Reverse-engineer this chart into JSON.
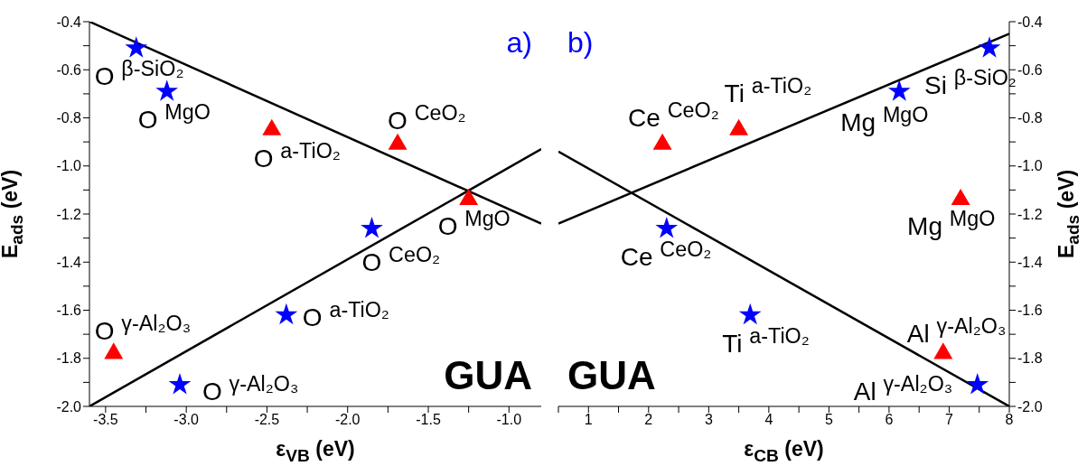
{
  "chart_data": [
    {
      "type": "scatter",
      "xlabel": "ε$_{VB}$ (eV)",
      "ylabel": "E$_{ads}$ (eV)",
      "xlim": [
        -3.6,
        -0.8
      ],
      "xticks": [
        {
          "value": -3.5,
          "label": "-3.5"
        },
        {
          "value": -3.25,
          "label": null
        },
        {
          "value": -3.0,
          "label": "-3.0"
        },
        {
          "value": -2.75,
          "label": null
        },
        {
          "value": -2.5,
          "label": "-2.5"
        },
        {
          "value": -2.25,
          "label": null
        },
        {
          "value": -2.0,
          "label": "-2.0"
        },
        {
          "value": -1.75,
          "label": null
        },
        {
          "value": -1.5,
          "label": "-1.5"
        },
        {
          "value": -1.25,
          "label": null
        },
        {
          "value": -1.0,
          "label": "-1.0"
        }
      ],
      "ylim": [
        -2.0,
        -0.4
      ],
      "yticks": [
        {
          "value": -2.0,
          "label": "-2.0"
        },
        {
          "value": -1.9,
          "label": null
        },
        {
          "value": -1.8,
          "label": "-1.8"
        },
        {
          "value": -1.7,
          "label": null
        },
        {
          "value": -1.6,
          "label": "-1.6"
        },
        {
          "value": -1.5,
          "label": null
        },
        {
          "value": -1.4,
          "label": "-1.4"
        },
        {
          "value": -1.3,
          "label": null
        },
        {
          "value": -1.2,
          "label": "-1.2"
        },
        {
          "value": -1.1,
          "label": null
        },
        {
          "value": -1.0,
          "label": "-1.0"
        },
        {
          "value": -0.9,
          "label": null
        },
        {
          "value": -0.8,
          "label": "-0.8"
        },
        {
          "value": -0.7,
          "label": null
        },
        {
          "value": -0.6,
          "label": "-0.6"
        },
        {
          "value": -0.5,
          "label": null
        },
        {
          "value": -0.4,
          "label": "-0.4"
        }
      ],
      "series": [
        {
          "marker": "star",
          "color": "#0000ff",
          "x": [
            -3.31,
            -3.12,
            -1.85,
            -2.38,
            -3.04
          ],
          "values": [
            -0.51,
            -0.69,
            -1.26,
            -1.62,
            -1.91
          ]
        },
        {
          "marker": "triangle",
          "color": "#ff0000",
          "x": [
            -2.47,
            -1.69,
            -1.25,
            -3.45
          ],
          "values": [
            -0.85,
            -0.91,
            -1.14,
            -1.78
          ]
        },
        {
          "type": "line",
          "color": "#000000",
          "x": [
            -3.6,
            -0.8
          ],
          "values": [
            -0.4,
            -1.24
          ]
        },
        {
          "type": "line",
          "color": "#000000",
          "x": [
            -3.6,
            -0.8
          ],
          "values": [
            -2.0,
            -0.93
          ]
        }
      ],
      "annotations": [
        "a)",
        "GUA",
        {
          "text": "O $^{β-SiO₂}$",
          "x": -3.31,
          "y": -0.51
        },
        {
          "text": "O $^{MgO}$",
          "x": -3.12,
          "y": -0.69
        },
        {
          "text": "O $^{a-TiO₂}$",
          "x": -2.47,
          "y": -0.85
        },
        {
          "text": "O $^{CeO₂}$",
          "x": -1.69,
          "y": -0.91
        },
        {
          "text": "O $^{MgO}$",
          "x": -1.25,
          "y": -1.14
        },
        {
          "text": "O $^{CeO₂}$",
          "x": -1.85,
          "y": -1.26
        },
        {
          "text": "O $^{a-TiO₂}$",
          "x": -2.38,
          "y": -1.62
        },
        {
          "text": "O $^{γ-Al₂O₃}$",
          "x": -3.45,
          "y": -1.78
        },
        {
          "text": "O $^{γ-Al₂O₃}$",
          "x": -3.04,
          "y": -1.91
        }
      ]
    },
    {
      "type": "scatter",
      "xlabel": "ε$_{CB}$ (eV)",
      "ylabel": "E$_{ads}$ (eV)",
      "xlim": [
        0.5,
        8
      ],
      "xticks": [
        {
          "value": 0.5,
          "label": null
        },
        1,
        {
          "value": 1.5,
          "label": null
        },
        2,
        {
          "value": 2.5,
          "label": null
        },
        3,
        {
          "value": 3.5,
          "label": null
        },
        4,
        {
          "value": 4.5,
          "label": null
        },
        5,
        {
          "value": 5.5,
          "label": null
        },
        6,
        {
          "value": 6.5,
          "label": null
        },
        7,
        {
          "value": 7.5,
          "label": null
        },
        8
      ],
      "ylim": [
        -2.0,
        -0.4
      ],
      "yticks": [
        {
          "value": -2.0,
          "label": "-2.0"
        },
        {
          "value": -1.9,
          "label": null
        },
        {
          "value": -1.8,
          "label": "-1.8"
        },
        {
          "value": -1.7,
          "label": null
        },
        {
          "value": -1.6,
          "label": "-1.6"
        },
        {
          "value": -1.5,
          "label": null
        },
        {
          "value": -1.4,
          "label": "-1.4"
        },
        {
          "value": -1.3,
          "label": null
        },
        {
          "value": -1.2,
          "label": "-1.2"
        },
        {
          "value": -1.1,
          "label": null
        },
        {
          "value": -1.0,
          "label": "-1.0"
        },
        {
          "value": -0.9,
          "label": null
        },
        {
          "value": -0.8,
          "label": "-0.8"
        },
        {
          "value": -0.7,
          "label": null
        },
        {
          "value": -0.6,
          "label": "-0.6"
        },
        {
          "value": -0.5,
          "label": null
        },
        {
          "value": -0.4,
          "label": "-0.4"
        }
      ],
      "series": [
        {
          "marker": "star",
          "color": "#0000ff",
          "x": [
            7.67,
            6.17,
            2.3,
            3.69,
            7.47
          ],
          "values": [
            -0.51,
            -0.69,
            -1.26,
            -1.62,
            -1.91
          ]
        },
        {
          "marker": "triangle",
          "color": "#ff0000",
          "x": [
            3.5,
            2.23,
            7.19,
            6.9
          ],
          "values": [
            -0.85,
            -0.91,
            -1.14,
            -1.78
          ]
        },
        {
          "type": "line",
          "color": "#000000",
          "x": [
            0.5,
            8
          ],
          "values": [
            -1.24,
            -0.45
          ]
        },
        {
          "type": "line",
          "color": "#000000",
          "x": [
            0.5,
            8
          ],
          "values": [
            -0.94,
            -2.0
          ]
        }
      ],
      "annotations": [
        "b)",
        "GUA",
        {
          "text": "Ce $^{CeO₂}$",
          "x": 2.23,
          "y": -0.91
        },
        {
          "text": "Ti $^{a-TiO₂}$",
          "x": 3.5,
          "y": -0.85
        },
        {
          "text": "Mg $^{MgO}$",
          "x": 6.17,
          "y": -0.69
        },
        {
          "text": "Si $^{β-SiO₂}$",
          "x": 7.67,
          "y": -0.51
        },
        {
          "text": "Mg $^{MgO}$",
          "x": 7.19,
          "y": -1.14
        },
        {
          "text": "Ce $^{CeO₂}$",
          "x": 2.3,
          "y": -1.26
        },
        {
          "text": "Ti $^{a-TiO₂}$",
          "x": 3.69,
          "y": -1.62
        },
        {
          "text": "Al $^{γ-Al₂O₃}$",
          "x": 6.9,
          "y": -1.78
        },
        {
          "text": "Al $^{γ-Al₂O₃}$",
          "x": 7.47,
          "y": -1.91
        }
      ]
    }
  ]
}
